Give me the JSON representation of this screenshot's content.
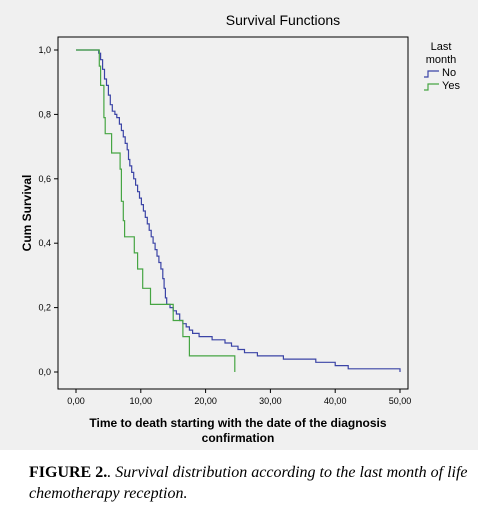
{
  "chart_data": {
    "type": "line",
    "title": "Survival Functions",
    "xlabel_lines": [
      "Time to death starting with the date of the diagnosis",
      "confirmation"
    ],
    "ylabel": "Cum Survival",
    "xlim": [
      0,
      50
    ],
    "ylim": [
      0,
      1
    ],
    "x_ticks": [
      0,
      10,
      20,
      30,
      40,
      50
    ],
    "x_tick_labels": [
      "0,00",
      "10,00",
      "20,00",
      "30,00",
      "40,00",
      "50,00"
    ],
    "y_ticks": [
      0,
      0.2,
      0.4,
      0.6,
      0.8,
      1.0
    ],
    "y_tick_labels": [
      "0,0",
      "0,2",
      "0,4",
      "0,6",
      "0,8",
      "1,0"
    ],
    "grid": false,
    "legend": {
      "title_lines": [
        "Last",
        "month"
      ],
      "placement": "top-right outside plot"
    },
    "series": [
      {
        "name": "No",
        "color": "#3b44a6",
        "step": true,
        "points": [
          [
            0,
            1.0
          ],
          [
            3.3,
            1.0
          ],
          [
            3.5,
            0.99
          ],
          [
            3.8,
            0.97
          ],
          [
            4.1,
            0.94
          ],
          [
            4.4,
            0.91
          ],
          [
            4.7,
            0.89
          ],
          [
            5.0,
            0.86
          ],
          [
            5.3,
            0.83
          ],
          [
            5.6,
            0.81
          ],
          [
            6.0,
            0.8
          ],
          [
            6.3,
            0.79
          ],
          [
            6.7,
            0.77
          ],
          [
            7.0,
            0.75
          ],
          [
            7.3,
            0.73
          ],
          [
            7.6,
            0.71
          ],
          [
            7.9,
            0.69
          ],
          [
            8.1,
            0.66
          ],
          [
            8.3,
            0.64
          ],
          [
            8.6,
            0.62
          ],
          [
            8.9,
            0.6
          ],
          [
            9.2,
            0.58
          ],
          [
            9.5,
            0.56
          ],
          [
            9.8,
            0.54
          ],
          [
            10.1,
            0.52
          ],
          [
            10.4,
            0.5
          ],
          [
            10.7,
            0.48
          ],
          [
            11.0,
            0.46
          ],
          [
            11.3,
            0.44
          ],
          [
            11.6,
            0.42
          ],
          [
            11.9,
            0.4
          ],
          [
            12.2,
            0.38
          ],
          [
            12.5,
            0.36
          ],
          [
            12.8,
            0.34
          ],
          [
            13.1,
            0.32
          ],
          [
            13.4,
            0.29
          ],
          [
            13.6,
            0.26
          ],
          [
            13.8,
            0.23
          ],
          [
            14.0,
            0.21
          ],
          [
            14.5,
            0.2
          ],
          [
            15.0,
            0.19
          ],
          [
            15.5,
            0.18
          ],
          [
            16.0,
            0.16
          ],
          [
            16.5,
            0.15
          ],
          [
            17.0,
            0.14
          ],
          [
            17.5,
            0.13
          ],
          [
            18.0,
            0.12
          ],
          [
            19.0,
            0.11
          ],
          [
            21.0,
            0.1
          ],
          [
            23.0,
            0.09
          ],
          [
            24.0,
            0.08
          ],
          [
            25.0,
            0.07
          ],
          [
            26.0,
            0.06
          ],
          [
            28.0,
            0.05
          ],
          [
            32.0,
            0.04
          ],
          [
            37.0,
            0.03
          ],
          [
            40.0,
            0.02
          ],
          [
            42.0,
            0.01
          ],
          [
            49.5,
            0.01
          ],
          [
            50.0,
            0.0
          ]
        ]
      },
      {
        "name": "Yes",
        "color": "#46a543",
        "step": true,
        "points": [
          [
            0,
            1.0
          ],
          [
            3.5,
            1.0
          ],
          [
            3.6,
            0.95
          ],
          [
            3.8,
            0.89
          ],
          [
            4.3,
            0.79
          ],
          [
            4.5,
            0.74
          ],
          [
            5.5,
            0.68
          ],
          [
            6.8,
            0.63
          ],
          [
            7.0,
            0.53
          ],
          [
            7.3,
            0.47
          ],
          [
            7.5,
            0.42
          ],
          [
            9.0,
            0.37
          ],
          [
            9.5,
            0.32
          ],
          [
            10.3,
            0.26
          ],
          [
            11.5,
            0.21
          ],
          [
            15.0,
            0.16
          ],
          [
            16.5,
            0.11
          ],
          [
            17.5,
            0.05
          ],
          [
            24.5,
            0.0
          ]
        ]
      }
    ]
  },
  "caption": {
    "label": "FIGURE 2.",
    "text": ". Survival distribution according to the last month of life chemotherapy reception."
  }
}
